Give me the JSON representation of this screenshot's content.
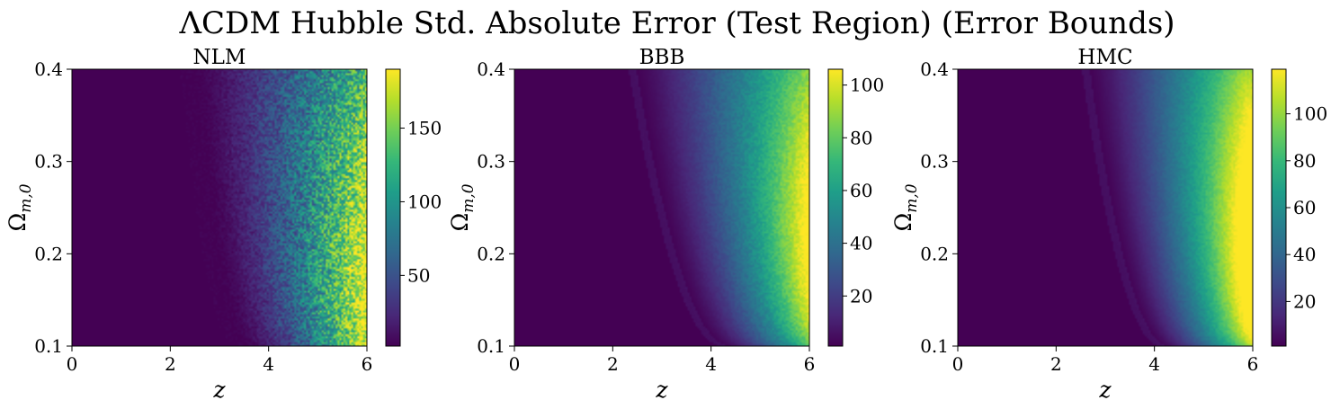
{
  "figure": {
    "title": "ΛCDM Hubble Std. Absolute Error (Test Region) (Error Bounds)"
  },
  "colormap": {
    "name": "viridis",
    "stops": [
      "#440154",
      "#482878",
      "#3e4989",
      "#31688e",
      "#26828e",
      "#1f9e89",
      "#35b779",
      "#6ece58",
      "#b5de2b",
      "#fde725"
    ]
  },
  "chart_data": [
    {
      "type": "heatmap",
      "title": "NLM",
      "xlabel": "z",
      "ylabel": "Ω_{m,0}",
      "xlim": [
        0,
        6
      ],
      "ylim": [
        0.1,
        0.4
      ],
      "x_ticks": [
        "0",
        "2",
        "4",
        "6"
      ],
      "y_ticks": [
        "0.1",
        "0.2",
        "0.3",
        "0.4"
      ],
      "colorbar": {
        "min": 2,
        "max": 190,
        "ticks": [
          50,
          100,
          150
        ],
        "tick_labels": [
          "50",
          "100",
          "150"
        ]
      },
      "field": {
        "pattern": "noisy",
        "value_min": 2,
        "value_max": 190,
        "onset_z_at_min_omega": 3.6,
        "onset_z_at_max_omega": 2.5,
        "ramp_width_z": 2.6,
        "high_corner": "bottom-right",
        "noise": 0.55
      }
    },
    {
      "type": "heatmap",
      "title": "BBB",
      "xlabel": "z",
      "ylabel": "Ω_{m,0}",
      "xlim": [
        0,
        6
      ],
      "ylim": [
        0.1,
        0.4
      ],
      "x_ticks": [
        "0",
        "2",
        "4",
        "6"
      ],
      "y_ticks": [
        "0.1",
        "0.2",
        "0.3",
        "0.4"
      ],
      "colorbar": {
        "min": 1,
        "max": 106,
        "ticks": [
          20,
          40,
          60,
          80,
          100
        ],
        "tick_labels": [
          "20",
          "40",
          "60",
          "80",
          "100"
        ]
      },
      "field": {
        "pattern": "smooth",
        "value_min": 1,
        "value_max": 106,
        "onset_z_at_min_omega": 4.3,
        "onset_z_at_max_omega": 2.4,
        "ramp_width_z": 2.3,
        "high_corner": "bottom-right",
        "noise": 0.12
      }
    },
    {
      "type": "heatmap",
      "title": "HMC",
      "xlabel": "z",
      "ylabel": "Ω_{m,0}",
      "xlim": [
        0,
        6
      ],
      "ylim": [
        0.1,
        0.4
      ],
      "x_ticks": [
        "0",
        "2",
        "4",
        "6"
      ],
      "y_ticks": [
        "0.1",
        "0.2",
        "0.3",
        "0.4"
      ],
      "colorbar": {
        "min": 1,
        "max": 119,
        "ticks": [
          20,
          40,
          60,
          80,
          100
        ],
        "tick_labels": [
          "20",
          "40",
          "60",
          "80",
          "100"
        ]
      },
      "field": {
        "pattern": "smooth",
        "value_min": 1,
        "value_max": 119,
        "onset_z_at_min_omega": 4.2,
        "onset_z_at_max_omega": 2.6,
        "ramp_width_z": 2.0,
        "high_corner": "bottom-right",
        "noise": 0.08
      }
    }
  ]
}
